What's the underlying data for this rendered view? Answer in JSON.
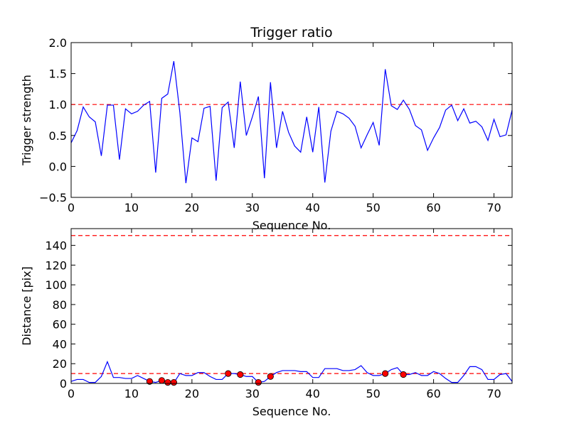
{
  "chart_data": [
    {
      "type": "line",
      "title": "Trigger ratio",
      "xlabel": "Sequence No.",
      "ylabel": "Trigger strength",
      "xlim": [
        0,
        73
      ],
      "ylim": [
        -0.5,
        2.0
      ],
      "xticks": [
        "0",
        "10",
        "20",
        "30",
        "40",
        "50",
        "60",
        "70"
      ],
      "yticks": [
        "−0.5",
        "0.0",
        "0.5",
        "1.0",
        "1.5",
        "2.0"
      ],
      "grid": false,
      "colors": {
        "line": "#0000ff",
        "threshold": "#ff0000"
      },
      "threshold": 1.0,
      "series": [
        {
          "x": [
            0,
            1,
            2,
            3,
            4,
            5,
            6,
            7,
            8,
            9,
            10,
            11,
            12,
            13,
            14,
            15,
            16,
            17,
            18,
            19,
            20,
            21,
            22,
            23,
            24,
            25,
            26,
            27,
            28,
            29,
            30,
            31,
            32,
            33,
            34,
            35,
            36,
            37,
            38,
            39,
            40,
            41,
            42,
            43,
            44,
            45,
            46,
            47,
            48,
            49,
            50,
            51,
            52,
            53,
            54,
            55,
            56,
            57,
            58,
            59,
            60,
            61,
            62,
            63,
            64,
            65,
            66,
            67,
            68,
            69,
            70,
            71,
            72,
            73
          ],
          "values": [
            0.38,
            0.58,
            0.96,
            0.8,
            0.72,
            0.17,
            0.99,
            0.99,
            0.11,
            0.93,
            0.85,
            0.89,
            0.99,
            1.05,
            -0.1,
            1.1,
            1.17,
            1.7,
            0.87,
            -0.27,
            0.46,
            0.4,
            0.94,
            0.97,
            -0.23,
            0.95,
            1.04,
            0.3,
            1.37,
            0.5,
            0.8,
            1.13,
            -0.19,
            1.36,
            0.3,
            0.89,
            0.55,
            0.33,
            0.23,
            0.8,
            0.23,
            0.96,
            -0.26,
            0.57,
            0.89,
            0.85,
            0.78,
            0.65,
            0.3,
            0.51,
            0.71,
            0.34,
            1.57,
            0.98,
            0.92,
            1.07,
            0.92,
            0.66,
            0.59,
            0.26,
            0.46,
            0.63,
            0.91,
            0.99,
            0.74,
            0.93,
            0.7,
            0.73,
            0.64,
            0.42,
            0.76,
            0.48,
            0.51,
            0.91
          ]
        }
      ]
    },
    {
      "type": "line",
      "title": "",
      "xlabel": "Sequence No.",
      "ylabel": "Distance [pix]",
      "xlim": [
        0,
        73
      ],
      "ylim": [
        0,
        157
      ],
      "xticks": [
        "0",
        "10",
        "20",
        "30",
        "40",
        "50",
        "60",
        "70"
      ],
      "yticks": [
        "0",
        "20",
        "40",
        "60",
        "80",
        "100",
        "120",
        "140"
      ],
      "grid": false,
      "colors": {
        "line": "#0000ff",
        "threshold": "#ff0000",
        "marker": "#ff0000"
      },
      "thresholds": [
        10,
        150
      ],
      "series": [
        {
          "x": [
            0,
            1,
            2,
            3,
            4,
            5,
            6,
            7,
            8,
            9,
            10,
            11,
            12,
            13,
            14,
            15,
            16,
            17,
            18,
            19,
            20,
            21,
            22,
            23,
            24,
            25,
            26,
            27,
            28,
            29,
            30,
            31,
            32,
            33,
            34,
            35,
            36,
            37,
            38,
            39,
            40,
            41,
            42,
            43,
            44,
            45,
            46,
            47,
            48,
            49,
            50,
            51,
            52,
            53,
            54,
            55,
            56,
            57,
            58,
            59,
            60,
            61,
            62,
            63,
            64,
            65,
            66,
            67,
            68,
            69,
            70,
            71,
            72,
            73
          ],
          "values": [
            2,
            4,
            4,
            1,
            1,
            7,
            22,
            6,
            6,
            5,
            5,
            8,
            5,
            2,
            1,
            3,
            0.5,
            0.5,
            10,
            8,
            8,
            11,
            11,
            7,
            4,
            4,
            10,
            10,
            9,
            7,
            7,
            1,
            2,
            7,
            11,
            13,
            13,
            13,
            12,
            12,
            6,
            6,
            15,
            15,
            15,
            13,
            13,
            14,
            18,
            11,
            8,
            8,
            10,
            14,
            16,
            9,
            9,
            11,
            8,
            8,
            12,
            10,
            5,
            1,
            1,
            8,
            17,
            17,
            14,
            4,
            4,
            9,
            10,
            2
          ]
        },
        {
          "name": "",
          "markers": true,
          "x": [
            13,
            15,
            16,
            17,
            26,
            28,
            31,
            33,
            52,
            55
          ],
          "values": [
            2,
            3,
            1,
            1,
            10,
            9,
            1,
            7,
            10,
            9
          ]
        }
      ]
    }
  ]
}
